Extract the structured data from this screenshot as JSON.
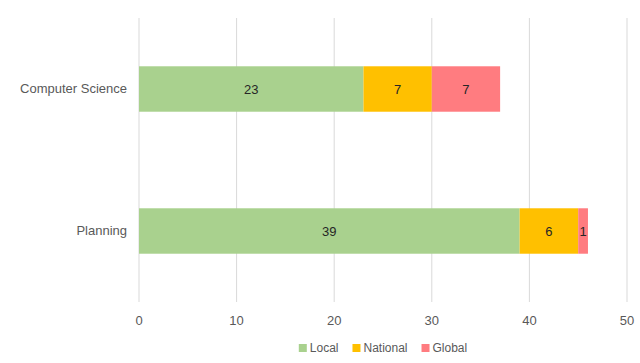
{
  "chart_data": {
    "type": "bar",
    "orientation": "horizontal",
    "stacked": true,
    "categories": [
      "Computer Science",
      "Planning"
    ],
    "series": [
      {
        "name": "Local",
        "color": "#a9d18e",
        "values": [
          23,
          39
        ]
      },
      {
        "name": "National",
        "color": "#ffc000",
        "values": [
          7,
          6
        ]
      },
      {
        "name": "Global",
        "color": "#ff7c80",
        "values": [
          7,
          1
        ]
      }
    ],
    "xlim": [
      0,
      50
    ],
    "xticks": [
      0,
      10,
      20,
      30,
      40,
      50
    ],
    "grid": true,
    "legend": "bottom",
    "data_labels": true
  }
}
